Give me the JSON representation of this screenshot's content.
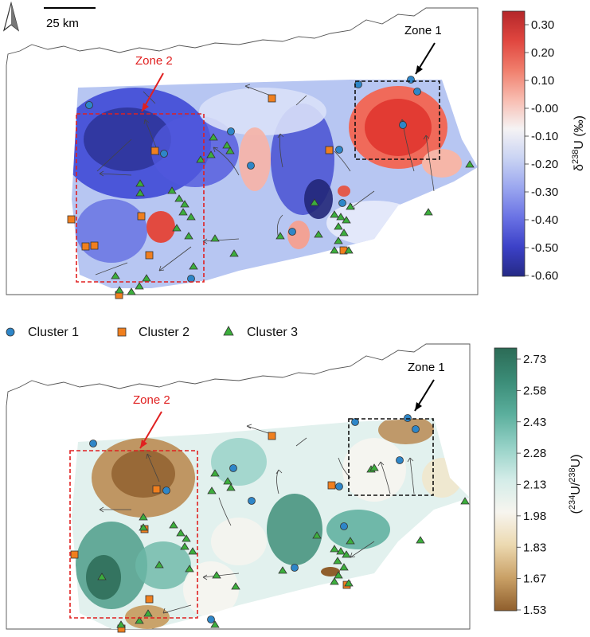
{
  "scale_bar": {
    "label": "25 km"
  },
  "legend": {
    "items": [
      {
        "label": "Cluster 1",
        "shape": "circle",
        "color": "#2e86c8"
      },
      {
        "label": "Cluster 2",
        "shape": "square",
        "color": "#f07f1e"
      },
      {
        "label": "Cluster 3",
        "shape": "triangle",
        "color": "#3cae3c"
      }
    ]
  },
  "panels": [
    {
      "zone1_label": "Zone 1",
      "zone2_label": "Zone 2",
      "colorbar": {
        "label_prefix": "δ",
        "label_sup": "238",
        "label_suffix": "U (‰)",
        "ticks": [
          "0.30",
          "0.20",
          "0.10",
          "-0.00",
          "-0.10",
          "-0.20",
          "-0.30",
          "-0.40",
          "-0.50",
          "-0.60"
        ],
        "colors": [
          "#b4272a",
          "#e0463f",
          "#f07e6c",
          "#f8bcb0",
          "#f5f3f4",
          "#c9d3f3",
          "#9aa6ef",
          "#6a72e4",
          "#3c41c8",
          "#252a85"
        ]
      }
    },
    {
      "zone1_label": "Zone 1",
      "zone2_label": "Zone 2",
      "colorbar": {
        "label_prefix": "(",
        "label_sup": "234",
        "label_mid": "U/",
        "label_sup2": "238",
        "label_suffix": "U)",
        "ticks": [
          "2.73",
          "2.58",
          "2.43",
          "2.28",
          "2.13",
          "1.98",
          "1.83",
          "1.67",
          "1.53"
        ],
        "colors": [
          "#2c6b56",
          "#3b8c77",
          "#5aae9c",
          "#95d1c6",
          "#d3ece8",
          "#f7f5ef",
          "#ecd9b0",
          "#c9a066",
          "#8f5e2c"
        ]
      }
    }
  ]
}
